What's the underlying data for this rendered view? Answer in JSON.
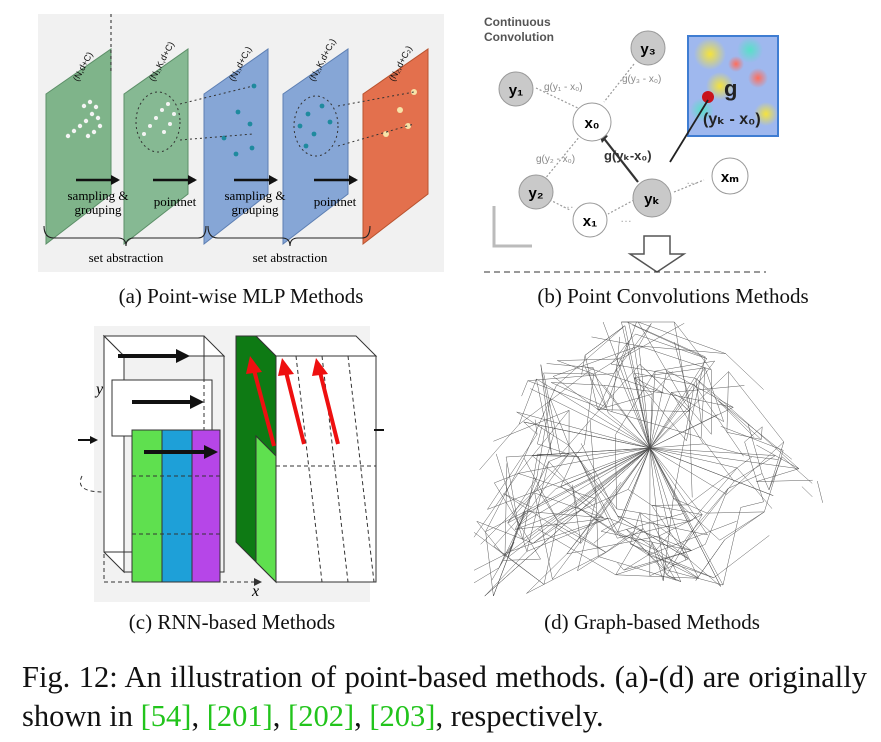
{
  "panel_a": {
    "layer_labels": [
      "(N,d+C)",
      "(N₁,K,d+C)",
      "(N₁,d+C₁)",
      "(N₂,K,d+C₁)",
      "(N₂,d+C₂)"
    ],
    "step_labels": [
      "sampling &",
      "grouping",
      "pointnet",
      "sampling &",
      "grouping",
      "pointnet"
    ],
    "stage_labels": [
      "set abstraction",
      "set abstraction"
    ],
    "caption": "(a) Point-wise MLP Methods"
  },
  "panel_b": {
    "title_line1": "Continuous",
    "title_line2": "Convolution",
    "nodes": {
      "y1": "y₁",
      "y2": "y₂",
      "y3": "y₃",
      "yk": "yₖ",
      "x0": "x₀",
      "x1": "x₁",
      "xm": "xₘ"
    },
    "edge_labels": {
      "g1": "g(y₁ - x₀)",
      "g2": "g(y₂ - x₀)",
      "g3": "g(y₃ - x₀)",
      "gk": "g(yₖ-x₀)"
    },
    "inset_g": "g",
    "inset_expr": "(yₖ - x₀)",
    "ellipsis": "…",
    "caption": "(b) Point Convolutions Methods"
  },
  "panel_c": {
    "axis_y": "y",
    "axis_x": "x",
    "caption": "(c) RNN-based Methods"
  },
  "panel_d": {
    "caption": "(d) Graph-based Methods"
  },
  "figure_caption": {
    "prefix": "Fig. 12: An illustration of point-based methods. (a)-(d) are originally shown in ",
    "refs": [
      "[54]",
      "[201]",
      "[202]",
      "[203]"
    ],
    "sep": ", ",
    "suffix": ", respectively."
  },
  "colors": {
    "green_layer": "#7fb48a",
    "blue_layer": "#86a6d6",
    "orange_layer": "#e3704d",
    "cite": "#22c41c",
    "rnn_green": "#5fe04f",
    "rnn_blue": "#1ea0d8",
    "rnn_purple": "#b646e8",
    "rnn_dark_green": "#0e7a14",
    "red_arrow": "#ee1010"
  }
}
